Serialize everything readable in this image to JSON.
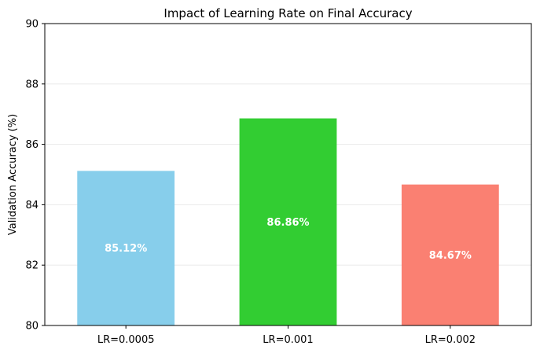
{
  "chart_data": {
    "type": "bar",
    "title": "Impact of Learning Rate on Final Accuracy",
    "xlabel": "",
    "ylabel": "Validation Accuracy (%)",
    "categories": [
      "LR=0.0005",
      "LR=0.001",
      "LR=0.002"
    ],
    "values": [
      85.12,
      86.86,
      84.67
    ],
    "value_labels": [
      "85.12%",
      "86.86%",
      "84.67%"
    ],
    "colors": [
      "#87CEEB",
      "#32CD32",
      "#FA8072"
    ],
    "ylim": [
      80,
      90
    ],
    "yticks": [
      80,
      82,
      84,
      86,
      88,
      90
    ],
    "ytick_labels": [
      "80",
      "82",
      "84",
      "86",
      "88",
      "90"
    ],
    "grid": "horizontal, light",
    "legend": "none"
  }
}
